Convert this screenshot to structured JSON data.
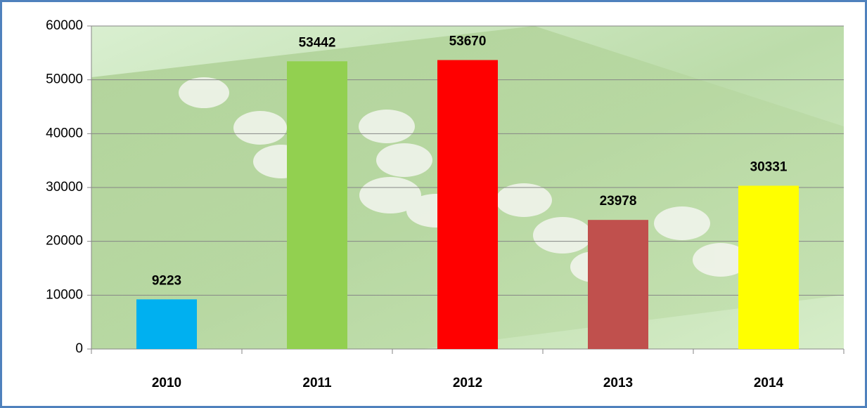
{
  "chart_data": {
    "type": "bar",
    "categories": [
      "2010",
      "2011",
      "2012",
      "2013",
      "2014"
    ],
    "values": [
      9223,
      53442,
      53670,
      23978,
      30331
    ],
    "colors": [
      "#00b0f0",
      "#92d050",
      "#ff0000",
      "#c0504d",
      "#ffff00"
    ],
    "ylim": [
      0,
      60000
    ],
    "yticks": [
      0,
      10000,
      20000,
      30000,
      40000,
      50000,
      60000
    ],
    "grid": true
  }
}
